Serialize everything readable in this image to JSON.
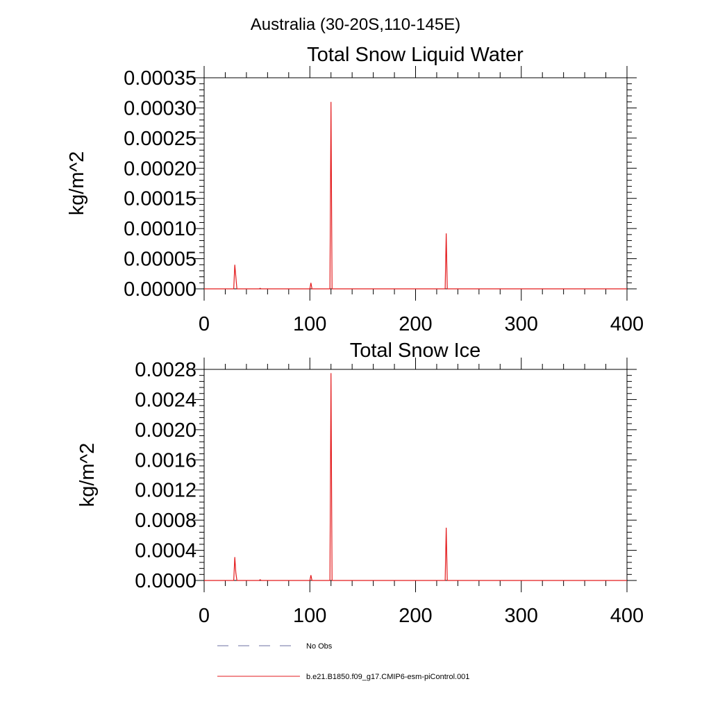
{
  "figure": {
    "title": "Australia (30-20S,110-145E)"
  },
  "colors": {
    "model_line": "#e31a1c",
    "obs_line": "#6b6fa0",
    "axes": "#000000"
  },
  "chart_data": [
    {
      "type": "line",
      "title": "Total Snow Liquid Water",
      "xlabel": "",
      "ylabel": "kg/m^2",
      "xlim": [
        0,
        400
      ],
      "ylim": [
        0,
        0.00035
      ],
      "x_ticks": [
        0,
        100,
        200,
        300,
        400
      ],
      "x_tick_labels": [
        "0",
        "100",
        "200",
        "300",
        "400"
      ],
      "y_ticks": [
        0,
        5e-05,
        0.0001,
        0.00015,
        0.0002,
        0.00025,
        0.0003,
        0.00035
      ],
      "y_tick_labels": [
        "0.00000",
        "0.00005",
        "0.00010",
        "0.00015",
        "0.00020",
        "0.00025",
        "0.00030",
        "0.00035"
      ],
      "grid": false,
      "series": [
        {
          "name": "b.e21.B1850.f09_g17.CMIP6-esm-piControl.001",
          "x": [
            0,
            28,
            29,
            30,
            31,
            52,
            53,
            54,
            100,
            101,
            102,
            119,
            120,
            121,
            228,
            229,
            230,
            400
          ],
          "y": [
            0,
            0,
            4e-05,
            2e-05,
            0,
            0,
            1e-06,
            0,
            0,
            1e-05,
            0,
            0,
            0.00031,
            0,
            0,
            9.2e-05,
            0,
            0
          ]
        }
      ]
    },
    {
      "type": "line",
      "title": "Total Snow Ice",
      "xlabel": "",
      "ylabel": "kg/m^2",
      "xlim": [
        0,
        400
      ],
      "ylim": [
        0,
        0.0028
      ],
      "x_ticks": [
        0,
        100,
        200,
        300,
        400
      ],
      "x_tick_labels": [
        "0",
        "100",
        "200",
        "300",
        "400"
      ],
      "y_ticks": [
        0,
        0.0004,
        0.0008,
        0.0012,
        0.0016,
        0.002,
        0.0024,
        0.0028
      ],
      "y_tick_labels": [
        "0.0000",
        "0.0004",
        "0.0008",
        "0.0012",
        "0.0016",
        "0.0020",
        "0.0024",
        "0.0028"
      ],
      "grid": false,
      "series": [
        {
          "name": "b.e21.B1850.f09_g17.CMIP6-esm-piControl.001",
          "x": [
            0,
            28,
            29,
            30,
            31,
            52,
            53,
            54,
            100,
            101,
            102,
            119,
            120,
            121,
            228,
            229,
            230,
            400
          ],
          "y": [
            0,
            0,
            0.00031,
            0.0001,
            0,
            0,
            1e-05,
            0,
            0,
            7e-05,
            0,
            0,
            0.00275,
            0,
            0,
            0.0007,
            0,
            0
          ]
        }
      ]
    }
  ],
  "legend": {
    "items": [
      {
        "label": "No Obs",
        "style": "dashed",
        "color_key": "obs_line"
      },
      {
        "label": "b.e21.B1850.f09_g17.CMIP6-esm-piControl.001",
        "style": "solid",
        "color_key": "model_line"
      }
    ]
  }
}
